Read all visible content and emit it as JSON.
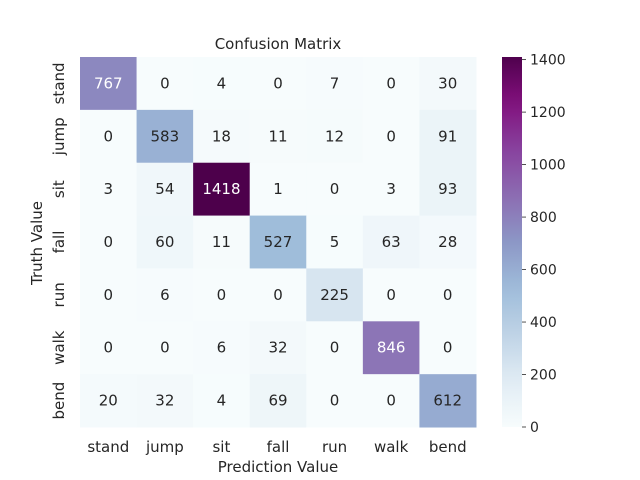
{
  "chart_data": {
    "type": "heatmap",
    "title": "Confusion Matrix",
    "xlabel": "Prediction Value",
    "ylabel": "Truth Value",
    "x_categories": [
      "stand",
      "jump",
      "sit",
      "fall",
      "run",
      "walk",
      "bend"
    ],
    "y_categories": [
      "stand",
      "jump",
      "sit",
      "fall",
      "run",
      "walk",
      "bend"
    ],
    "values": [
      [
        767,
        0,
        4,
        0,
        7,
        0,
        30
      ],
      [
        0,
        583,
        18,
        11,
        12,
        0,
        91
      ],
      [
        3,
        54,
        1418,
        1,
        0,
        3,
        93
      ],
      [
        0,
        60,
        11,
        527,
        5,
        63,
        28
      ],
      [
        0,
        6,
        0,
        0,
        225,
        0,
        0
      ],
      [
        0,
        0,
        6,
        32,
        0,
        846,
        0
      ],
      [
        20,
        32,
        4,
        69,
        0,
        0,
        612
      ]
    ],
    "colormap": "BuPu",
    "vmin": 0,
    "vmax": 1418,
    "colorbar_ticks": [
      0,
      200,
      400,
      600,
      800,
      1000,
      1200,
      1400
    ]
  }
}
